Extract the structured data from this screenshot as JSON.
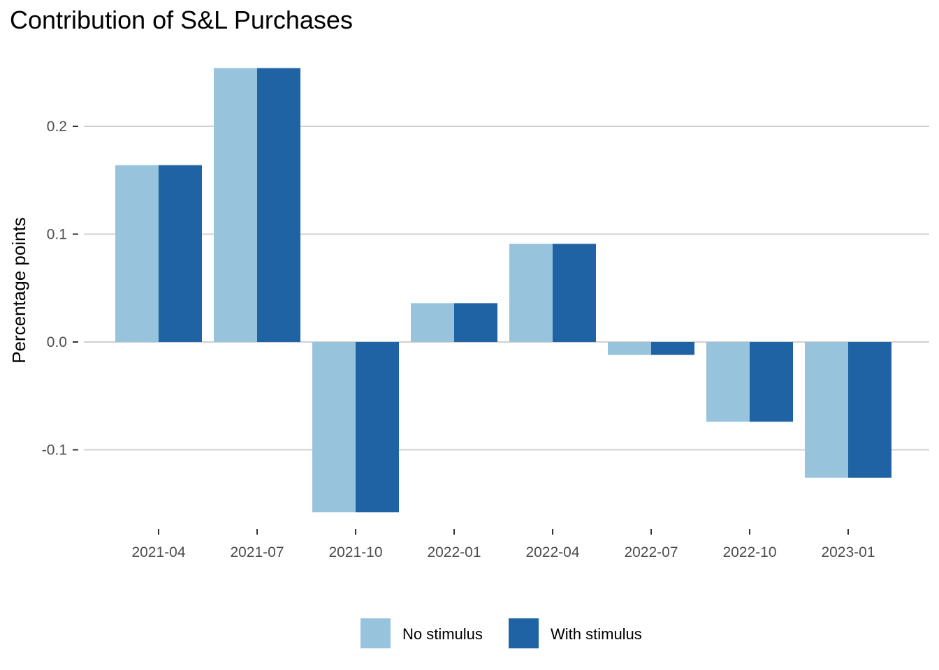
{
  "chart_data": {
    "type": "bar",
    "title": "Contribution of S&L Purchases",
    "xlabel": "",
    "ylabel": "Percentage points",
    "categories": [
      "2021-04",
      "2021-07",
      "2021-10",
      "2022-01",
      "2022-04",
      "2022-07",
      "2022-10",
      "2023-01"
    ],
    "series": [
      {
        "name": "No stimulus",
        "color": "#97c3dc",
        "values": [
          0.164,
          0.254,
          -0.158,
          0.036,
          0.091,
          -0.012,
          -0.074,
          -0.126
        ]
      },
      {
        "name": "With stimulus",
        "color": "#1f63a5",
        "values": [
          0.164,
          0.254,
          -0.158,
          0.036,
          0.091,
          -0.012,
          -0.074,
          -0.126
        ]
      }
    ],
    "yticks": [
      -0.1,
      0.0,
      0.1,
      0.2
    ],
    "ytick_labels": [
      "-0.1",
      "0.0",
      "0.1",
      "0.2"
    ],
    "ylim": [
      -0.175,
      0.27
    ],
    "grid": true,
    "legend_position": "bottom"
  }
}
